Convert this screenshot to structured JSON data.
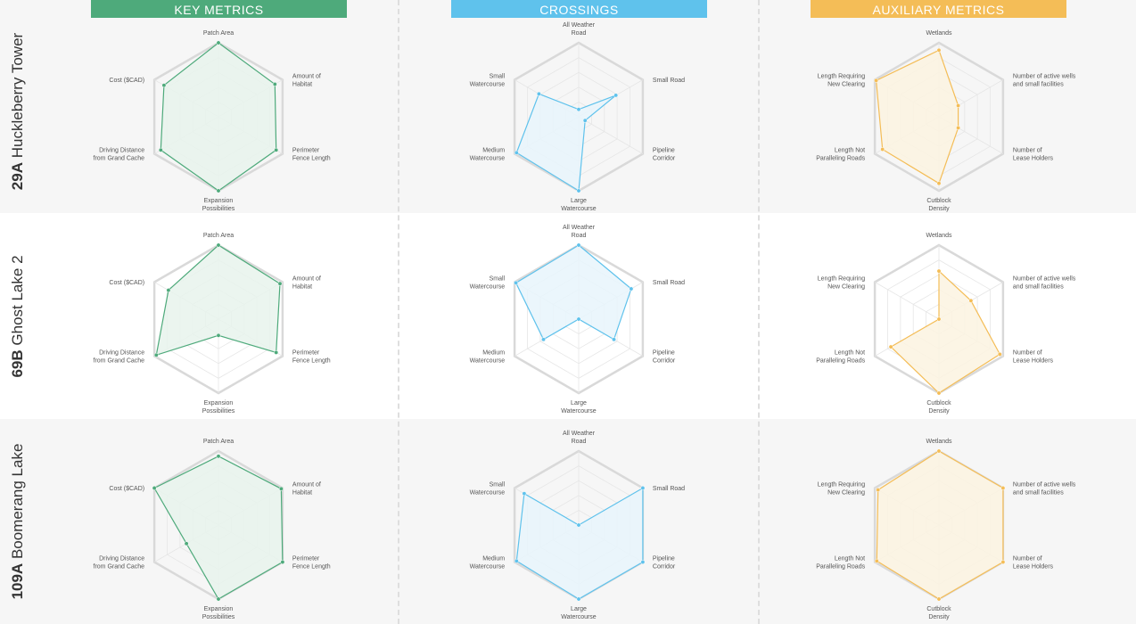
{
  "columns": [
    {
      "key": "key",
      "title": "KEY METRICS",
      "color": "#4eaa7b",
      "fill": "#e7f3ec",
      "axes": [
        "Patch Area",
        "Amount of Habitat",
        "Perimeter Fence Length",
        "Expansion Possibilities",
        "Driving Distance from Grand Cache",
        "Cost ($CAD)"
      ]
    },
    {
      "key": "crossings",
      "title": "CROSSINGS",
      "color": "#5fc2ec",
      "fill": "#e7f4fc",
      "axes": [
        "All Weather Road",
        "Small Road",
        "Pipeline Corridor",
        "Large Watercourse",
        "Medium Watercourse",
        "Small Watercourse"
      ]
    },
    {
      "key": "aux",
      "title": "AUXILIARY METRICS",
      "color": "#f4bd57",
      "fill": "#fcf3e1",
      "axes": [
        "Wetlands",
        "Number of active wells and small facilities",
        "Number of Lease Holders",
        "Cutblock Density",
        "Length Not Paralleling Roads",
        "Length Requiring New Clearing"
      ]
    }
  ],
  "rows": [
    {
      "code": "29A",
      "name": "Huckleberry Tower"
    },
    {
      "code": "69B",
      "name": "Ghost Lake 2"
    },
    {
      "code": "109A",
      "name": "Boomerang Lake"
    }
  ],
  "chart_data": [
    {
      "type": "radar",
      "row": "29A",
      "column": "KEY METRICS",
      "axes": [
        "Patch Area",
        "Amount of Habitat",
        "Perimeter Fence Length",
        "Expansion Possibilities",
        "Driving Distance from Grand Cache",
        "Cost ($CAD)"
      ],
      "values": [
        1.0,
        0.88,
        0.9,
        1.0,
        0.9,
        0.85
      ]
    },
    {
      "type": "radar",
      "row": "29A",
      "column": "CROSSINGS",
      "axes": [
        "All Weather Road",
        "Small Road",
        "Pipeline Corridor",
        "Large Watercourse",
        "Medium Watercourse",
        "Small Watercourse"
      ],
      "values": [
        0.1,
        0.58,
        0.1,
        1.0,
        0.97,
        0.62
      ]
    },
    {
      "type": "radar",
      "row": "29A",
      "column": "AUXILIARY METRICS",
      "axes": [
        "Wetlands",
        "Number of active wells and small facilities",
        "Number of Lease Holders",
        "Cutblock Density",
        "Length Not Paralleling Roads",
        "Length Requiring New Clearing"
      ],
      "values": [
        0.9,
        0.3,
        0.3,
        0.9,
        0.88,
        0.98
      ]
    },
    {
      "type": "radar",
      "row": "69B",
      "column": "KEY METRICS",
      "axes": [
        "Patch Area",
        "Amount of Habitat",
        "Perimeter Fence Length",
        "Expansion Possibilities",
        "Driving Distance from Grand Cache",
        "Cost ($CAD)"
      ],
      "values": [
        1.0,
        0.96,
        0.9,
        0.22,
        0.97,
        0.78
      ]
    },
    {
      "type": "radar",
      "row": "69B",
      "column": "CROSSINGS",
      "axes": [
        "All Weather Road",
        "Small Road",
        "Pipeline Corridor",
        "Large Watercourse",
        "Medium Watercourse",
        "Small Watercourse"
      ],
      "values": [
        1.0,
        0.82,
        0.55,
        0.0,
        0.55,
        0.98
      ]
    },
    {
      "type": "radar",
      "row": "69B",
      "column": "AUXILIARY METRICS",
      "axes": [
        "Wetlands",
        "Number of active wells and small facilities",
        "Number of Lease Holders",
        "Cutblock Density",
        "Length Not Paralleling Roads",
        "Length Requiring New Clearing"
      ],
      "values": [
        0.65,
        0.5,
        0.95,
        1.0,
        0.75,
        0.0
      ]
    },
    {
      "type": "radar",
      "row": "109A",
      "column": "KEY METRICS",
      "axes": [
        "Patch Area",
        "Amount of Habitat",
        "Perimeter Fence Length",
        "Expansion Possibilities",
        "Driving Distance from Grand Cache",
        "Cost ($CAD)"
      ],
      "values": [
        0.93,
        0.98,
        1.0,
        1.0,
        0.5,
        1.0
      ]
    },
    {
      "type": "radar",
      "row": "109A",
      "column": "CROSSINGS",
      "axes": [
        "All Weather Road",
        "Small Road",
        "Pipeline Corridor",
        "Large Watercourse",
        "Medium Watercourse",
        "Small Watercourse"
      ],
      "values": [
        0.0,
        1.0,
        1.0,
        1.0,
        0.97,
        0.85
      ]
    },
    {
      "type": "radar",
      "row": "109A",
      "column": "AUXILIARY METRICS",
      "axes": [
        "Wetlands",
        "Number of active wells and small facilities",
        "Number of Lease Holders",
        "Cutblock Density",
        "Length Not Paralleling Roads",
        "Length Requiring New Clearing"
      ],
      "values": [
        1.0,
        1.0,
        1.0,
        1.0,
        0.97,
        0.95
      ]
    }
  ]
}
